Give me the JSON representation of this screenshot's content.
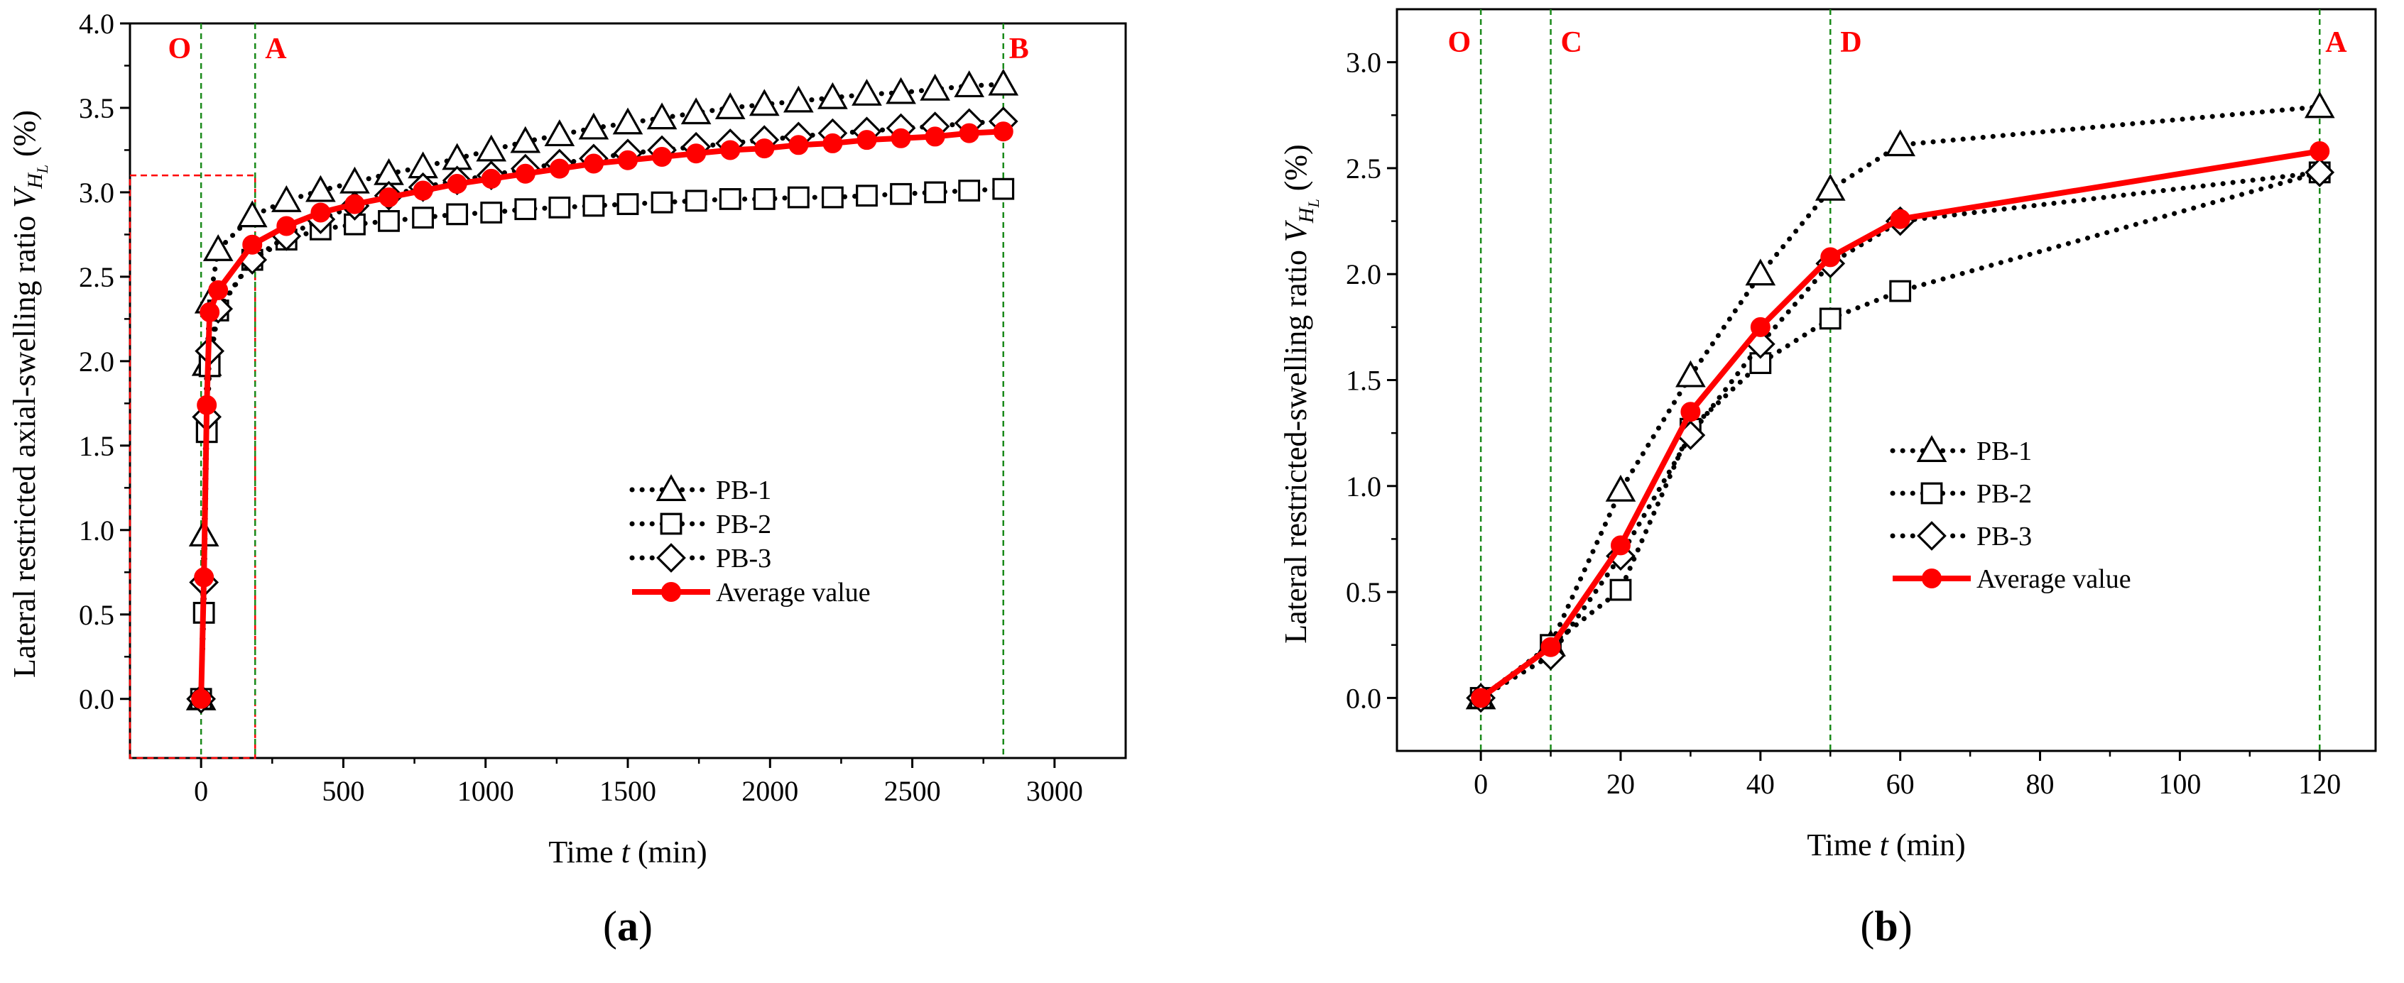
{
  "chart_data": [
    {
      "panel_label": "(a)",
      "panel_letter": "a",
      "type": "line",
      "xlabel_prefix": "Time ",
      "xlabel_var": "t",
      "xlabel_suffix": " (min)",
      "ylabel_main": "Lateral restricted axial-swelling ratio ",
      "ylabel_var": "V",
      "ylabel_sub": "H",
      "ylabel_subsub": "L",
      "ylabel_unit": " (%)",
      "xlim": [
        -250,
        3250
      ],
      "ylim": [
        -0.35,
        4.0
      ],
      "xticks": [
        0,
        500,
        1000,
        1500,
        2000,
        2500,
        3000
      ],
      "xtick_labels": [
        "0",
        "500",
        "1000",
        "1500",
        "2000",
        "2500",
        "3000"
      ],
      "yticks": [
        0.0,
        0.5,
        1.0,
        1.5,
        2.0,
        2.5,
        3.0,
        3.5,
        4.0
      ],
      "ytick_labels": [
        "0.0",
        "0.5",
        "1.0",
        "1.5",
        "2.0",
        "2.5",
        "3.0",
        "3.5",
        "4.0"
      ],
      "stage_lines": [
        {
          "label": "O",
          "x": 0
        },
        {
          "label": "A",
          "x": 190
        },
        {
          "label": "B",
          "x": 2820
        }
      ],
      "zoom_box": {
        "x": [
          -250,
          190
        ],
        "y": [
          -0.35,
          3.1
        ]
      },
      "legend_position": "center-right",
      "series": [
        {
          "name": "PB-1",
          "marker": "triangle",
          "style": "dotted",
          "x": [
            0,
            10,
            20,
            30,
            60,
            180,
            300,
            420,
            540,
            660,
            780,
            900,
            1020,
            1140,
            1260,
            1380,
            1500,
            1620,
            1740,
            1860,
            1980,
            2100,
            2220,
            2340,
            2460,
            2580,
            2700,
            2820
          ],
          "y": [
            0.0,
            0.97,
            1.98,
            2.35,
            2.66,
            2.86,
            2.95,
            3.01,
            3.06,
            3.11,
            3.15,
            3.2,
            3.25,
            3.3,
            3.34,
            3.38,
            3.41,
            3.44,
            3.47,
            3.5,
            3.52,
            3.54,
            3.56,
            3.58,
            3.59,
            3.61,
            3.63,
            3.64
          ]
        },
        {
          "name": "PB-2",
          "marker": "square",
          "style": "dotted",
          "x": [
            0,
            10,
            20,
            30,
            60,
            180,
            300,
            420,
            540,
            660,
            780,
            900,
            1020,
            1140,
            1260,
            1380,
            1500,
            1620,
            1740,
            1860,
            1980,
            2100,
            2220,
            2340,
            2460,
            2580,
            2700,
            2820
          ],
          "y": [
            0.0,
            0.51,
            1.58,
            1.97,
            2.3,
            2.6,
            2.72,
            2.78,
            2.81,
            2.83,
            2.85,
            2.87,
            2.88,
            2.9,
            2.91,
            2.92,
            2.93,
            2.94,
            2.95,
            2.96,
            2.96,
            2.97,
            2.97,
            2.98,
            2.99,
            3.0,
            3.01,
            3.02
          ]
        },
        {
          "name": "PB-3",
          "marker": "diamond",
          "style": "dotted",
          "x": [
            0,
            10,
            20,
            30,
            60,
            180,
            300,
            420,
            540,
            660,
            780,
            900,
            1020,
            1140,
            1260,
            1380,
            1500,
            1620,
            1740,
            1860,
            1980,
            2100,
            2220,
            2340,
            2460,
            2580,
            2700,
            2820
          ],
          "y": [
            0.0,
            0.69,
            1.67,
            2.06,
            2.31,
            2.6,
            2.74,
            2.84,
            2.92,
            2.98,
            3.03,
            3.07,
            3.1,
            3.14,
            3.17,
            3.2,
            3.23,
            3.25,
            3.27,
            3.29,
            3.31,
            3.33,
            3.35,
            3.36,
            3.38,
            3.39,
            3.41,
            3.42
          ]
        },
        {
          "name": "Average value",
          "marker": "circle",
          "style": "solid",
          "x": [
            0,
            10,
            20,
            30,
            60,
            180,
            300,
            420,
            540,
            660,
            780,
            900,
            1020,
            1140,
            1260,
            1380,
            1500,
            1620,
            1740,
            1860,
            1980,
            2100,
            2220,
            2340,
            2460,
            2580,
            2700,
            2820
          ],
          "y": [
            0.0,
            0.72,
            1.74,
            2.29,
            2.42,
            2.69,
            2.8,
            2.88,
            2.93,
            2.97,
            3.01,
            3.05,
            3.08,
            3.11,
            3.14,
            3.17,
            3.19,
            3.21,
            3.23,
            3.25,
            3.26,
            3.28,
            3.29,
            3.31,
            3.32,
            3.33,
            3.35,
            3.36
          ]
        }
      ]
    },
    {
      "panel_label": "(b)",
      "panel_letter": "b",
      "type": "line",
      "xlabel_prefix": "Time ",
      "xlabel_var": "t",
      "xlabel_suffix": " (min)",
      "ylabel_main": "Lateral restricted-swelling ratio ",
      "ylabel_var": "V",
      "ylabel_sub": "H",
      "ylabel_subsub": "L",
      "ylabel_unit": " (%)",
      "xlim": [
        -12,
        128
      ],
      "ylim": [
        -0.25,
        3.25
      ],
      "xticks": [
        0,
        20,
        40,
        60,
        80,
        100,
        120
      ],
      "xtick_labels": [
        "0",
        "20",
        "40",
        "60",
        "80",
        "100",
        "120"
      ],
      "yticks": [
        0.0,
        0.5,
        1.0,
        1.5,
        2.0,
        2.5,
        3.0
      ],
      "ytick_labels": [
        "0.0",
        "0.5",
        "1.0",
        "1.5",
        "2.0",
        "2.5",
        "3.0"
      ],
      "stage_lines": [
        {
          "label": "O",
          "x": 0
        },
        {
          "label": "C",
          "x": 10
        },
        {
          "label": "D",
          "x": 50
        },
        {
          "label": "A",
          "x": 120
        }
      ],
      "legend_position": "center-right",
      "series": [
        {
          "name": "PB-1",
          "marker": "triangle",
          "style": "dotted",
          "x": [
            0,
            10,
            20,
            30,
            40,
            50,
            60,
            120
          ],
          "y": [
            0.0,
            0.25,
            0.98,
            1.52,
            2.0,
            2.4,
            2.61,
            2.79
          ]
        },
        {
          "name": "PB-2",
          "marker": "square",
          "style": "dotted",
          "x": [
            0,
            10,
            20,
            30,
            40,
            50,
            60,
            120
          ],
          "y": [
            0.0,
            0.25,
            0.51,
            1.27,
            1.58,
            1.79,
            1.92,
            2.48
          ]
        },
        {
          "name": "PB-3",
          "marker": "diamond",
          "style": "dotted",
          "x": [
            0,
            10,
            20,
            30,
            40,
            50,
            60,
            120
          ],
          "y": [
            0.0,
            0.2,
            0.67,
            1.24,
            1.67,
            2.05,
            2.25,
            2.48
          ]
        },
        {
          "name": "Average value",
          "marker": "circle",
          "style": "solid",
          "x": [
            0,
            10,
            20,
            30,
            40,
            50,
            60,
            120
          ],
          "y": [
            0.0,
            0.24,
            0.72,
            1.35,
            1.75,
            2.08,
            2.26,
            2.58
          ]
        }
      ]
    }
  ],
  "colors": {
    "average": "#ff0000",
    "series": "#000000",
    "stage_line": "#1a8a1a",
    "stage_label": "#ff0000",
    "zoom_box": "#ff0000",
    "axes": "#000000"
  }
}
